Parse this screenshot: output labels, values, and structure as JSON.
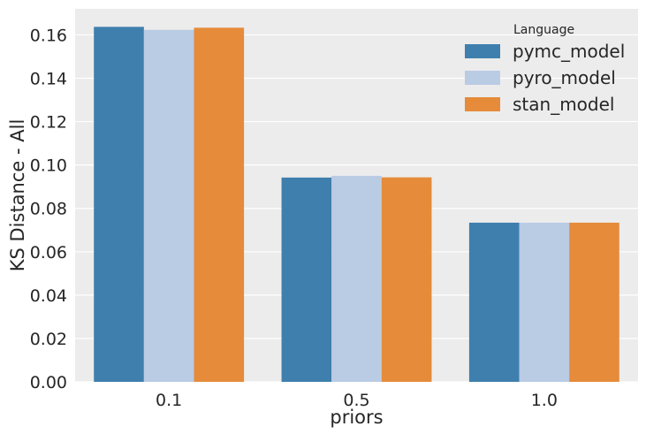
{
  "chart_data": {
    "type": "bar",
    "categories": [
      "0.1",
      "0.5",
      "1.0"
    ],
    "series": [
      {
        "name": "pymc_model",
        "color": "#3f7fad",
        "values": [
          0.1637,
          0.0942,
          0.0734
        ]
      },
      {
        "name": "pyro_model",
        "color": "#bacbe4",
        "values": [
          0.1623,
          0.095,
          0.0734
        ]
      },
      {
        "name": "stan_model",
        "color": "#e58b3a",
        "values": [
          0.1633,
          0.0943,
          0.0734
        ]
      }
    ],
    "xlabel": "priors",
    "ylabel": "KS Distance - All",
    "ylim": [
      0,
      0.172
    ],
    "yticks": [
      "0.00",
      "0.02",
      "0.04",
      "0.06",
      "0.08",
      "0.10",
      "0.12",
      "0.14",
      "0.16"
    ],
    "legend": {
      "title": "Language",
      "position": "top-right"
    },
    "grid": true,
    "background": "#ececec"
  }
}
